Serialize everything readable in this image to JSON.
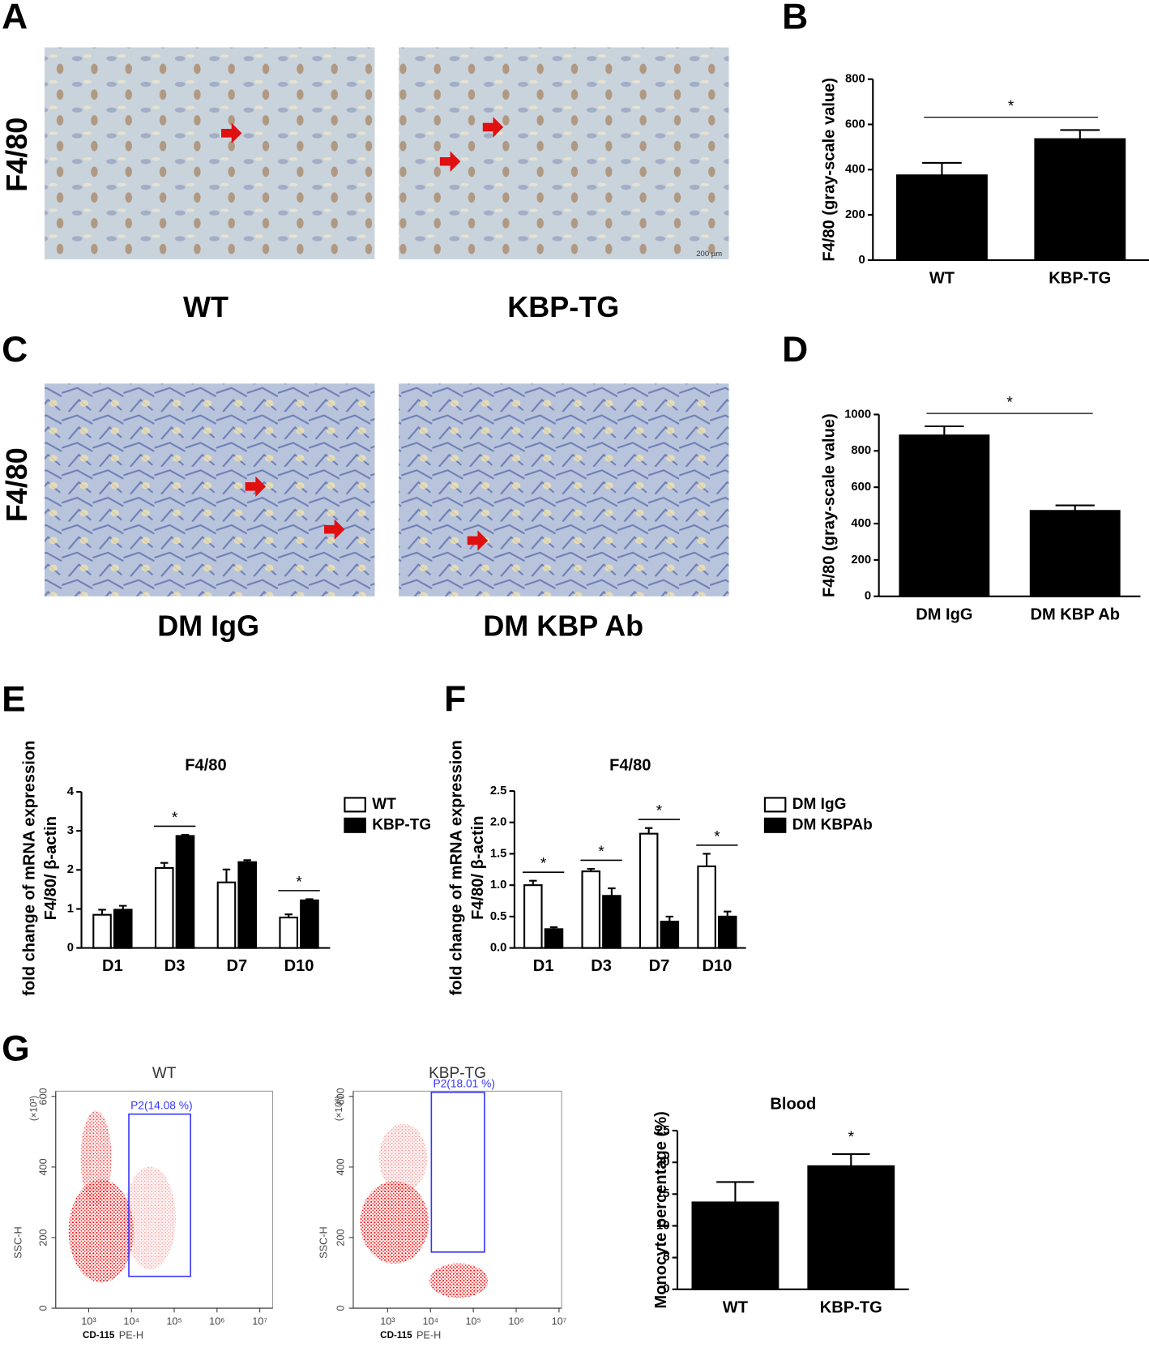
{
  "figure": {
    "panels": [
      "A",
      "B",
      "C",
      "D",
      "E",
      "F",
      "G"
    ],
    "row_label": "F4/80",
    "images": [
      "WT",
      "KBP-TG",
      "DM IgG",
      "DM KBP Ab"
    ],
    "scale_bar": "200 µm"
  },
  "chart_data": [
    {
      "type": "bar",
      "ylabel": "F4/80 (gray-scale value)",
      "categories": [
        "WT",
        "KBP-TG"
      ],
      "values": [
        375,
        535
      ],
      "errors": [
        55,
        40
      ],
      "color": "#000000",
      "ylim": [
        0,
        800
      ],
      "yticks": [
        0,
        200,
        400,
        600,
        800
      ],
      "annotation": "*"
    },
    {
      "type": "bar",
      "ylabel": "F4/80 (gray-scale value)",
      "categories": [
        "DM IgG",
        "DM KBP Ab"
      ],
      "values": [
        885,
        470
      ],
      "errors": [
        50,
        30
      ],
      "color": "#000000",
      "ylim": [
        0,
        1000
      ],
      "yticks": [
        0,
        200,
        400,
        600,
        800,
        1000
      ],
      "annotation": "*"
    },
    {
      "type": "grouped_bar",
      "title": "F4/80",
      "ylabel": [
        "fold change of mRNA expression",
        "F4/80/ β-actin"
      ],
      "categories": [
        "D1",
        "D3",
        "D7",
        "D10"
      ],
      "series": [
        {
          "name": "WT",
          "color": "#ffffff",
          "values": [
            0.85,
            2.05,
            1.68,
            0.78
          ],
          "errors": [
            0.13,
            0.13,
            0.33,
            0.08
          ]
        },
        {
          "name": "KBP-TG",
          "color": "#000000",
          "values": [
            0.98,
            2.87,
            2.2,
            1.22
          ],
          "errors": [
            0.1,
            0.03,
            0.05,
            0.03
          ]
        }
      ],
      "significance": [
        null,
        "*",
        null,
        "*"
      ],
      "ylim": [
        0,
        4
      ],
      "yticks": [
        0,
        1,
        2,
        3,
        4
      ],
      "legend": "right"
    },
    {
      "type": "grouped_bar",
      "title": "F4/80",
      "ylabel": [
        "fold change of mRNA expression",
        "F4/80/ β-actin"
      ],
      "categories": [
        "D1",
        "D3",
        "D7",
        "D10"
      ],
      "series": [
        {
          "name": "DM IgG",
          "color": "#ffffff",
          "values": [
            1.0,
            1.22,
            1.82,
            1.3
          ],
          "errors": [
            0.07,
            0.04,
            0.09,
            0.2
          ]
        },
        {
          "name": "DM KBPAb",
          "color": "#000000",
          "values": [
            0.3,
            0.83,
            0.42,
            0.5
          ],
          "errors": [
            0.03,
            0.12,
            0.08,
            0.08
          ]
        }
      ],
      "significance": [
        "*",
        "*",
        "*",
        "*"
      ],
      "ylim": [
        0,
        2.5
      ],
      "yticks": [
        {
          "value": 0,
          "label": "0.0"
        },
        0.5,
        {
          "value": 1,
          "label": "1.0"
        },
        1.5,
        {
          "value": 2,
          "label": "2.0"
        },
        2.5
      ],
      "legend": "right"
    },
    {
      "type": "flow",
      "title": "WT",
      "ylabel": "SSC-H",
      "yunit": "(×10³)",
      "xlabel": "CD-115",
      "xlabel2": "PE-H",
      "xlog": true,
      "xlim": [
        170,
        20000000
      ],
      "xticks": [
        {
          "value": 1000,
          "label": "10³"
        },
        {
          "value": 10000,
          "label": "10⁴"
        },
        {
          "value": 100000,
          "label": "10⁵"
        },
        {
          "value": 1000000,
          "label": "10⁶"
        },
        {
          "value": 10000000,
          "label": "10⁷"
        }
      ],
      "ylim": [
        0,
        615
      ],
      "yticks": [
        0,
        200,
        400,
        600
      ],
      "gate": {
        "label": "P2(14.08 %)",
        "x": [
          8700,
          240000
        ],
        "y": [
          90,
          550
        ]
      },
      "color": "#3333ff"
    },
    {
      "type": "flow",
      "title": "KBP-TG",
      "ylabel": "SSC-H",
      "yunit": "(×10³)",
      "xlabel": "CD-115",
      "xlabel2": "PE-H",
      "xlog": true,
      "xlim": [
        158,
        11500000
      ],
      "xticks": [
        {
          "value": 1000,
          "label": "10³"
        },
        {
          "value": 10000,
          "label": "10⁴"
        },
        {
          "value": 100000,
          "label": "10⁵"
        },
        {
          "value": 1000000,
          "label": "10⁶"
        },
        {
          "value": 10000000,
          "label": "10⁷"
        }
      ],
      "ylim": [
        0,
        615
      ],
      "yticks": [
        0,
        200,
        400,
        600
      ],
      "gate": {
        "label": "P2(18.01 %)",
        "x": [
          10500,
          182000
        ],
        "y": [
          159,
          612
        ]
      },
      "color": "#3333ff"
    },
    {
      "type": "bar",
      "title": "Blood",
      "ylabel": "Monocyte percentage (%)",
      "categories": [
        "WT",
        "KBP-TG"
      ],
      "values": [
        13.7,
        19.4
      ],
      "errors": [
        3.2,
        1.9
      ],
      "color": "#000000",
      "ylim": [
        0,
        25
      ],
      "yticks": [
        0,
        5,
        10,
        15,
        20,
        25
      ],
      "significance": [
        null,
        "*"
      ]
    }
  ]
}
